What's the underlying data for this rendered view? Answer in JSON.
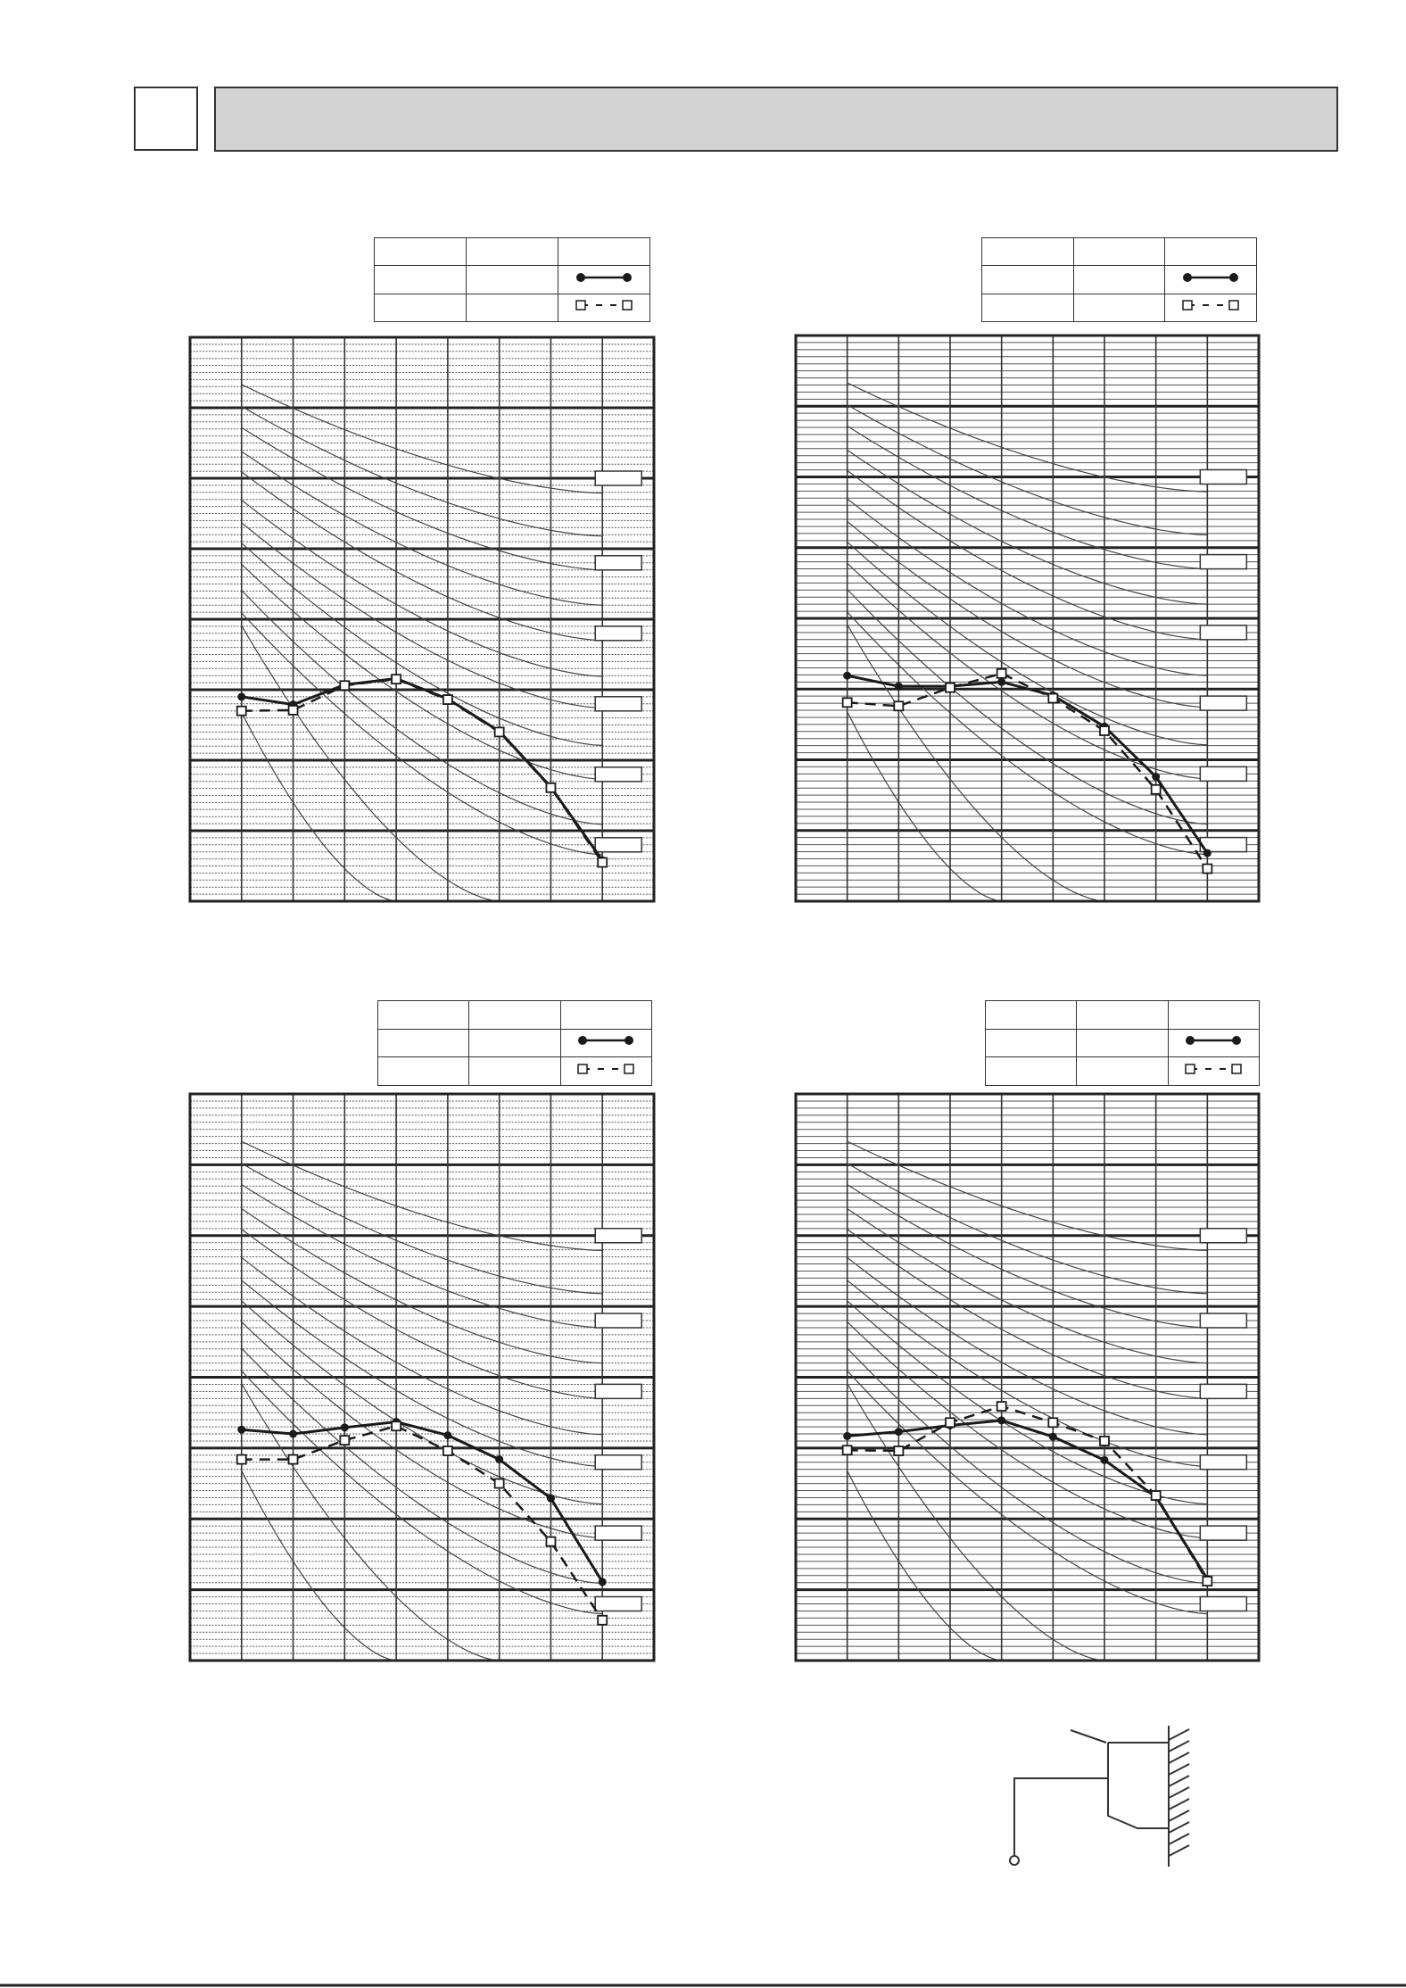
{
  "header": {
    "section_number": "",
    "title": ""
  },
  "colors": {
    "ink": "#1a1a1a",
    "grid": "#333333",
    "header_fill": "#d3d3d3"
  },
  "chart_data": [
    {
      "type": "line",
      "title": "",
      "xlabel": "",
      "ylabel": "",
      "xlim": [
        0,
        9
      ],
      "ylim": [
        0,
        80
      ],
      "grid": true,
      "minor_grid": "dotted",
      "x": [
        1,
        2,
        3,
        4,
        5,
        6,
        7,
        8
      ],
      "series": [
        {
          "style": "solid-filled-circle",
          "values": [
            29.0,
            27.9,
            30.7,
            31.6,
            28.7,
            24.1,
            16.2,
            5.8
          ]
        },
        {
          "style": "dashed-open-square",
          "values": [
            27.0,
            27.1,
            30.6,
            31.5,
            28.6,
            24.0,
            16.1,
            5.5
          ]
        }
      ],
      "legend": {
        "placement": "top-right",
        "rows": [
          [
            "",
            "",
            ""
          ],
          [
            "",
            "",
            "solid-filled-circle"
          ],
          [
            "",
            "",
            "dashed-open-square"
          ]
        ]
      },
      "curve_labels": [
        "",
        "",
        "",
        "",
        "",
        ""
      ]
    },
    {
      "type": "line",
      "title": "",
      "xlabel": "",
      "ylabel": "",
      "xlim": [
        0,
        9
      ],
      "ylim": [
        0,
        80
      ],
      "grid": true,
      "minor_grid": "solid",
      "x": [
        1,
        2,
        3,
        4,
        5,
        6,
        7,
        8
      ],
      "series": [
        {
          "style": "solid-filled-circle",
          "values": [
            31.9,
            30.4,
            30.4,
            31.0,
            29.1,
            24.7,
            17.6,
            6.8
          ]
        },
        {
          "style": "dashed-open-square",
          "values": [
            28.1,
            27.6,
            30.2,
            32.2,
            28.7,
            24.1,
            15.8,
            4.6
          ]
        }
      ],
      "legend": {
        "placement": "top-right",
        "rows": [
          [
            "",
            "",
            ""
          ],
          [
            "",
            "",
            "solid-filled-circle"
          ],
          [
            "",
            "",
            "dashed-open-square"
          ]
        ]
      },
      "curve_labels": [
        "",
        "",
        "",
        "",
        "",
        ""
      ]
    },
    {
      "type": "line",
      "title": "",
      "xlabel": "",
      "ylabel": "",
      "xlim": [
        0,
        9
      ],
      "ylim": [
        0,
        80
      ],
      "grid": true,
      "minor_grid": "dotted",
      "x": [
        1,
        2,
        3,
        4,
        5,
        6,
        7,
        8
      ],
      "series": [
        {
          "style": "solid-filled-circle",
          "values": [
            32.6,
            32.0,
            32.9,
            33.7,
            31.8,
            28.4,
            22.9,
            11.1
          ]
        },
        {
          "style": "dashed-open-square",
          "values": [
            28.4,
            28.4,
            31.1,
            33.1,
            29.6,
            25.0,
            16.8,
            5.7
          ]
        }
      ],
      "legend": {
        "placement": "top-right",
        "rows": [
          [
            "",
            "",
            ""
          ],
          [
            "",
            "",
            "solid-filled-circle"
          ],
          [
            "",
            "",
            "dashed-open-square"
          ]
        ]
      },
      "curve_labels": [
        "",
        "",
        "",
        "",
        "",
        ""
      ]
    },
    {
      "type": "line",
      "title": "",
      "xlabel": "",
      "ylabel": "",
      "xlim": [
        0,
        9
      ],
      "ylim": [
        0,
        80
      ],
      "grid": true,
      "minor_grid": "solid",
      "x": [
        1,
        2,
        3,
        4,
        5,
        6,
        7,
        8
      ],
      "series": [
        {
          "style": "solid-filled-circle",
          "values": [
            31.7,
            32.3,
            33.2,
            33.9,
            31.6,
            28.3,
            23.1,
            11.5
          ]
        },
        {
          "style": "dashed-open-square",
          "values": [
            29.7,
            29.6,
            33.6,
            35.9,
            33.6,
            31.0,
            23.3,
            11.2
          ]
        }
      ],
      "legend": {
        "placement": "top-right",
        "rows": [
          [
            "",
            "",
            ""
          ],
          [
            "",
            "",
            "solid-filled-circle"
          ],
          [
            "",
            "",
            "dashed-open-square"
          ]
        ]
      },
      "curve_labels": [
        "",
        "",
        "",
        "",
        "",
        ""
      ]
    }
  ],
  "reference_curves": [
    {
      "x_start": 1,
      "y_start": 73.3,
      "x_end": 8,
      "y_end": 57.9
    },
    {
      "x_start": 1,
      "y_start": 70.2,
      "x_end": 8,
      "y_end": 51.8
    },
    {
      "x_start": 1,
      "y_start": 67.2,
      "x_end": 8,
      "y_end": 47.0
    },
    {
      "x_start": 1,
      "y_start": 63.8,
      "x_end": 8,
      "y_end": 42.0
    },
    {
      "x_start": 1,
      "y_start": 60.9,
      "x_end": 8,
      "y_end": 37.0
    },
    {
      "x_start": 1,
      "y_start": 56.9,
      "x_end": 8,
      "y_end": 31.9
    },
    {
      "x_start": 1,
      "y_start": 53.7,
      "x_end": 8,
      "y_end": 27.4
    },
    {
      "x_start": 1,
      "y_start": 50.8,
      "x_end": 8,
      "y_end": 22.1
    },
    {
      "x_start": 1,
      "y_start": 47.8,
      "x_end": 8,
      "y_end": 17.3
    },
    {
      "x_start": 1,
      "y_start": 44.1,
      "x_end": 8,
      "y_end": 10.9
    },
    {
      "x_start": 1,
      "y_start": 40.9,
      "x_end": 8,
      "y_end": 6.6
    },
    {
      "x_start": 1,
      "y_start": 39.1,
      "x_end": 6,
      "y_end": 0
    },
    {
      "x_start": 1,
      "y_start": 26.8,
      "x_end": 4,
      "y_end": 0
    }
  ],
  "curve_label_levels": [
    60,
    48,
    38,
    28,
    18,
    8
  ],
  "diagram": {
    "label": ""
  }
}
